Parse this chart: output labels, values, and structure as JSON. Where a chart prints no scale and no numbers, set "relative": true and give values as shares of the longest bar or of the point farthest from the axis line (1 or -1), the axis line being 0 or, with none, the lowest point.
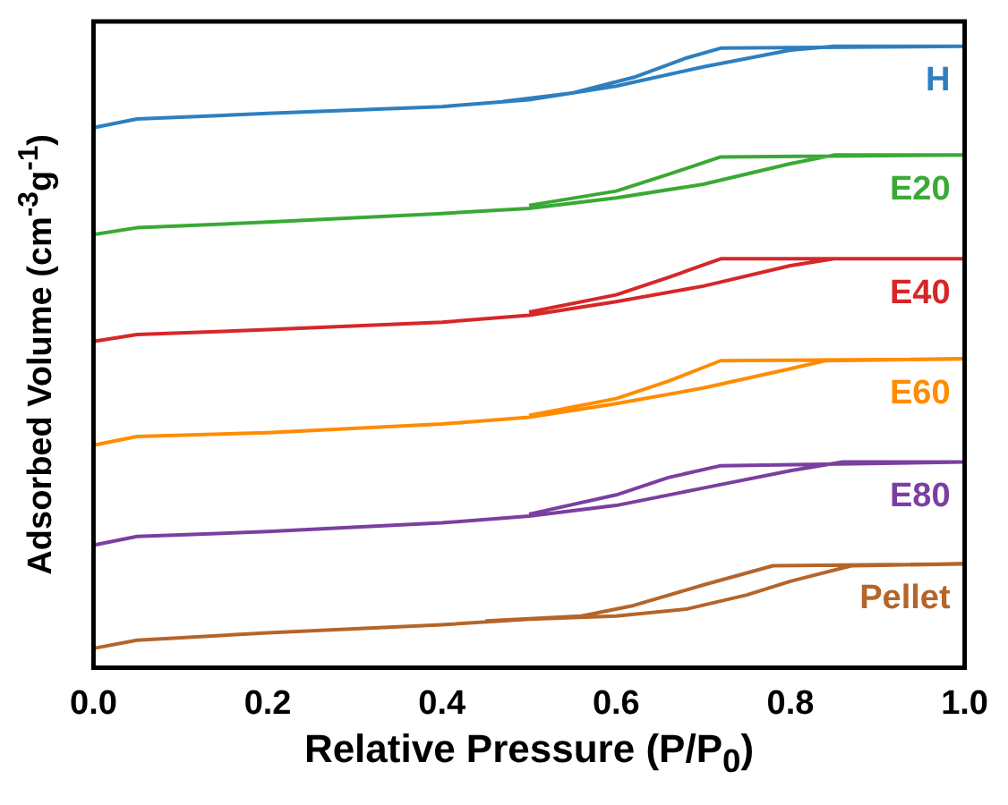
{
  "chart_data": {
    "type": "line",
    "relative": true,
    "xlabel": "Relative Pressure (P/P$_{0}$)",
    "ylabel": "Adsorbed Volume (cm$^{-3}$g$^{-1}$)",
    "xlim": [
      0,
      1
    ],
    "xticks": [
      {
        "value": 0,
        "label": "0.0"
      },
      {
        "value": 0.2,
        "label": "0.2"
      },
      {
        "value": 0.4,
        "label": "0.4"
      },
      {
        "value": 0.6,
        "label": "0.6"
      },
      {
        "value": 0.8,
        "label": "0.8"
      },
      {
        "value": 1,
        "label": "1.0"
      }
    ],
    "tick_labels": "x",
    "grid": false,
    "legend": false,
    "marker": "none",
    "line_style": "solid",
    "series": [
      {
        "name": "H",
        "color": "#2e7fbf",
        "x": [
          0,
          0.05,
          0.2,
          0.4,
          0.5,
          0.6,
          0.7,
          0.8,
          0.85,
          1,
          0.72,
          0.68,
          0.62,
          0.55,
          0.47
        ],
        "values": [
          0.869,
          0.883,
          0.892,
          0.903,
          0.914,
          0.936,
          0.967,
          0.994,
          1,
          1,
          0.997,
          0.981,
          0.95,
          0.925,
          0.911
        ]
      },
      {
        "name": "E20",
        "color": "#3aa935",
        "x": [
          0,
          0.05,
          0.2,
          0.4,
          0.5,
          0.6,
          0.7,
          0.8,
          0.85,
          1,
          0.72,
          0.66,
          0.6,
          0.5
        ],
        "values": [
          0.697,
          0.708,
          0.717,
          0.731,
          0.739,
          0.756,
          0.778,
          0.811,
          0.825,
          0.825,
          0.822,
          0.794,
          0.767,
          0.744
        ]
      },
      {
        "name": "E40",
        "color": "#d62728",
        "x": [
          0,
          0.05,
          0.2,
          0.4,
          0.5,
          0.6,
          0.7,
          0.8,
          0.85,
          1,
          0.72,
          0.66,
          0.6,
          0.5
        ],
        "values": [
          0.525,
          0.536,
          0.544,
          0.556,
          0.567,
          0.589,
          0.614,
          0.647,
          0.658,
          0.658,
          0.658,
          0.628,
          0.6,
          0.572
        ]
      },
      {
        "name": "E60",
        "color": "#ff8c00",
        "x": [
          0,
          0.05,
          0.2,
          0.4,
          0.5,
          0.6,
          0.7,
          0.8,
          0.84,
          1,
          0.72,
          0.66,
          0.6,
          0.5
        ],
        "values": [
          0.358,
          0.372,
          0.378,
          0.392,
          0.403,
          0.425,
          0.45,
          0.481,
          0.494,
          0.497,
          0.494,
          0.461,
          0.433,
          0.406
        ]
      },
      {
        "name": "E80",
        "color": "#7b3fa0",
        "x": [
          0,
          0.05,
          0.2,
          0.4,
          0.5,
          0.6,
          0.7,
          0.8,
          0.86,
          1,
          0.72,
          0.66,
          0.6,
          0.5
        ],
        "values": [
          0.197,
          0.211,
          0.219,
          0.233,
          0.244,
          0.261,
          0.289,
          0.317,
          0.331,
          0.331,
          0.325,
          0.306,
          0.278,
          0.247
        ]
      },
      {
        "name": "Pellet",
        "color": "#b5652a",
        "x": [
          0,
          0.05,
          0.2,
          0.4,
          0.5,
          0.6,
          0.68,
          0.75,
          0.8,
          0.87,
          1,
          0.78,
          0.7,
          0.62,
          0.56,
          0.45
        ],
        "values": [
          0.031,
          0.044,
          0.056,
          0.069,
          0.078,
          0.083,
          0.094,
          0.117,
          0.139,
          0.164,
          0.167,
          0.164,
          0.133,
          0.1,
          0.083,
          0.075
        ]
      }
    ]
  }
}
